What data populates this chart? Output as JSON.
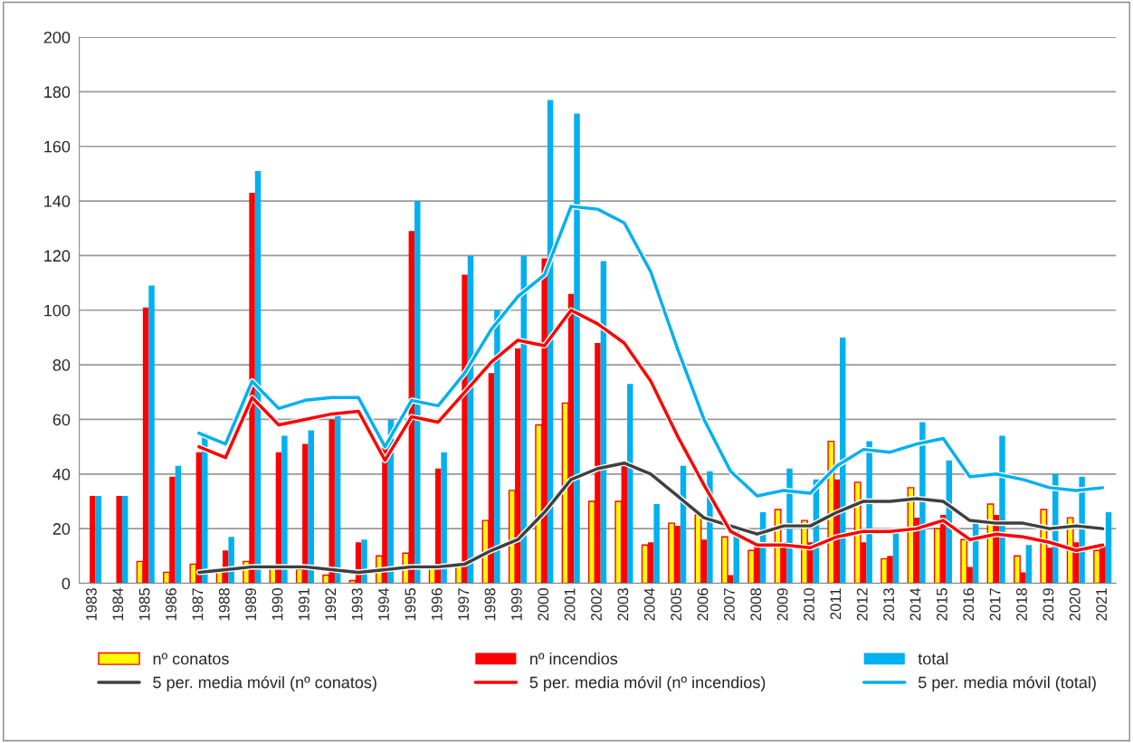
{
  "chart_data": {
    "type": "bar",
    "categories": [
      "1983",
      "1984",
      "1985",
      "1986",
      "1987",
      "1988",
      "1989",
      "1990",
      "1991",
      "1992",
      "1993",
      "1994",
      "1995",
      "1996",
      "1997",
      "1998",
      "1999",
      "2000",
      "2001",
      "2002",
      "2003",
      "2004",
      "2005",
      "2006",
      "2007",
      "2008",
      "2009",
      "2010",
      "2011",
      "2012",
      "2013",
      "2014",
      "2015",
      "2016",
      "2017",
      "2018",
      "2019",
      "2020",
      "2021"
    ],
    "series": [
      {
        "name": "nº conatos",
        "color": "#ffff00",
        "values": [
          null,
          null,
          8,
          4,
          7,
          5,
          8,
          6,
          5,
          3,
          1,
          10,
          11,
          6,
          7,
          23,
          34,
          58,
          66,
          30,
          30,
          14,
          22,
          25,
          17,
          12,
          27,
          23,
          52,
          37,
          9,
          35,
          20,
          16,
          29,
          10,
          27,
          24,
          12
        ]
      },
      {
        "name": "nº incendios",
        "color": "#ff0000",
        "values": [
          32,
          32,
          101,
          39,
          48,
          12,
          143,
          48,
          51,
          60,
          15,
          50,
          129,
          42,
          113,
          77,
          86,
          119,
          106,
          88,
          43,
          15,
          21,
          16,
          3,
          14,
          15,
          15,
          38,
          15,
          10,
          24,
          25,
          6,
          25,
          4,
          13,
          15,
          14
        ]
      },
      {
        "name": "total",
        "color": "#00b0f0",
        "values": [
          32,
          32,
          109,
          43,
          55,
          17,
          151,
          54,
          56,
          62,
          16,
          60,
          140,
          48,
          120,
          100,
          120,
          177,
          172,
          118,
          73,
          29,
          43,
          41,
          19,
          26,
          42,
          38,
          90,
          52,
          19,
          59,
          45,
          22,
          54,
          14,
          40,
          39,
          26
        ]
      },
      {
        "name": "5 per. media móvil (nº conatos)",
        "type": "line",
        "color": "#404040",
        "values": [
          null,
          null,
          null,
          null,
          4,
          5,
          6,
          6,
          6,
          5,
          4,
          5,
          6,
          6,
          7,
          12,
          16,
          26,
          38,
          42,
          44,
          40,
          32,
          24,
          21,
          18,
          21,
          21,
          26,
          30,
          30,
          31,
          30,
          23,
          22,
          22,
          20,
          21,
          20
        ]
      },
      {
        "name": "5 per. media móvil (nº incendios)",
        "type": "line",
        "color": "#ff0000",
        "values": [
          null,
          null,
          null,
          null,
          50,
          46,
          68,
          58,
          60,
          62,
          63,
          45,
          61,
          59,
          70,
          81,
          89,
          87,
          100,
          95,
          88,
          74,
          54,
          36,
          19,
          14,
          14,
          13,
          17,
          19,
          19,
          20,
          23,
          16,
          18,
          17,
          15,
          12,
          14
        ]
      },
      {
        "name": "5 per. media móvil (total)",
        "type": "line",
        "color": "#00b0f0",
        "values": [
          null,
          null,
          null,
          null,
          55,
          51,
          74,
          64,
          67,
          68,
          68,
          50,
          67,
          65,
          77,
          93,
          105,
          113,
          138,
          137,
          132,
          114,
          86,
          60,
          41,
          32,
          34,
          33,
          43,
          49,
          48,
          51,
          53,
          39,
          40,
          38,
          35,
          34,
          35
        ]
      }
    ],
    "ylim": [
      0,
      200
    ],
    "yticks": [
      0,
      20,
      40,
      60,
      80,
      100,
      120,
      140,
      160,
      180,
      200
    ],
    "grid": "y",
    "legend": "bottom"
  }
}
